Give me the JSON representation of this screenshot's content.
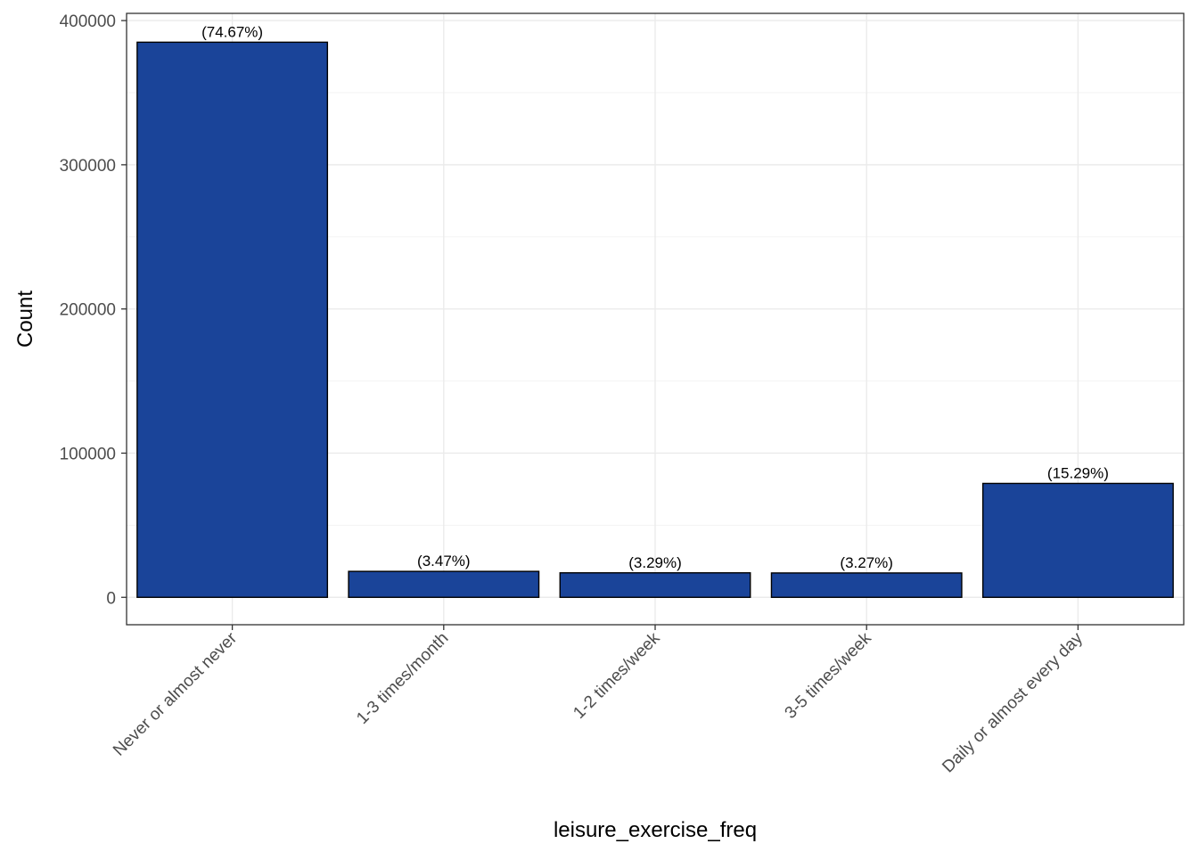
{
  "chart_data": {
    "type": "bar",
    "categories": [
      "Never or almost never",
      "1-3 times/month",
      "1-2 times/week",
      "3-5 times/week",
      "Daily or almost every day"
    ],
    "values": [
      385000,
      18000,
      17000,
      16900,
      79000
    ],
    "data_labels": [
      "(74.67%)",
      "(3.47%)",
      "(3.29%)",
      "(3.27%)",
      "(15.29%)"
    ],
    "title": "",
    "xlabel": "leisure_exercise_freq",
    "ylabel": "Count",
    "ylim": [
      -19000,
      405000
    ],
    "yticks": [
      0,
      100000,
      200000,
      300000,
      400000
    ],
    "ytick_labels": [
      "0",
      "100000",
      "200000",
      "300000",
      "400000"
    ],
    "grid": true,
    "bar_color": "#1a4499",
    "bar_edge_color": "#000000",
    "legend": "none"
  }
}
